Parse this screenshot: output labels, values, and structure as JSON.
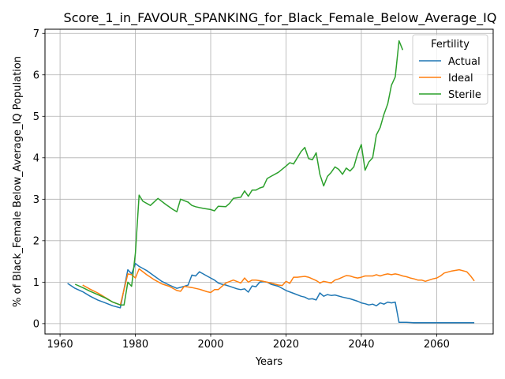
{
  "chart_data": {
    "type": "line",
    "title": "Score_1_in_FAVOUR_SPANKING_for_Black_Female_Below_Average_IQ",
    "xlabel": "Years",
    "ylabel": "% of Black_Female Below_Average_IQ Population",
    "xlim": [
      1956,
      2075
    ],
    "ylim": [
      -0.25,
      7.1
    ],
    "xticks": [
      1960,
      1980,
      2000,
      2020,
      2040,
      2060
    ],
    "yticks": [
      0,
      1,
      2,
      3,
      4,
      5,
      6,
      7
    ],
    "grid": true,
    "legend": {
      "title": "Fertility",
      "placement": "top-right"
    },
    "series": [
      {
        "name": "Actual",
        "color": "#1f77b4",
        "x": [
          1962,
          1964,
          1966,
          1968,
          1970,
          1972,
          1974,
          1976,
          1978,
          1979,
          1980,
          1981,
          1983,
          1985,
          1987,
          1989,
          1991,
          1993,
          1994,
          1995,
          1996,
          1997,
          1998,
          1999,
          2000,
          2001,
          2002,
          2003,
          2004,
          2005,
          2006,
          2007,
          2008,
          2009,
          2010,
          2011,
          2012,
          2013,
          2014,
          2015,
          2016,
          2018,
          2020,
          2022,
          2024,
          2025,
          2026,
          2027,
          2028,
          2029,
          2030,
          2031,
          2032,
          2033,
          2035,
          2037,
          2039,
          2040,
          2041,
          2042,
          2043,
          2044,
          2045,
          2046,
          2047,
          2048,
          2049,
          2050,
          2051,
          2052,
          2054,
          2056,
          2058,
          2060,
          2062,
          2064,
          2066,
          2068,
          2070
        ],
        "y": [
          0.97,
          0.85,
          0.77,
          0.66,
          0.57,
          0.5,
          0.43,
          0.38,
          1.3,
          1.2,
          1.45,
          1.38,
          1.28,
          1.15,
          1.02,
          0.93,
          0.85,
          0.9,
          0.93,
          1.17,
          1.15,
          1.25,
          1.2,
          1.15,
          1.1,
          1.05,
          0.98,
          0.95,
          0.93,
          0.9,
          0.87,
          0.84,
          0.82,
          0.84,
          0.76,
          0.91,
          0.89,
          1.0,
          1.01,
          1.0,
          0.95,
          0.9,
          0.8,
          0.73,
          0.66,
          0.64,
          0.59,
          0.6,
          0.57,
          0.74,
          0.66,
          0.7,
          0.68,
          0.69,
          0.64,
          0.6,
          0.54,
          0.5,
          0.48,
          0.45,
          0.47,
          0.43,
          0.5,
          0.47,
          0.52,
          0.5,
          0.52,
          0.03,
          0.03,
          0.03,
          0.02,
          0.02,
          0.02,
          0.02,
          0.02,
          0.02,
          0.02,
          0.02,
          0.02
        ]
      },
      {
        "name": "Ideal",
        "color": "#ff7f0e",
        "x": [
          1966,
          1968,
          1970,
          1972,
          1974,
          1976,
          1978,
          1979,
          1980,
          1981,
          1983,
          1985,
          1987,
          1989,
          1991,
          1992,
          1993,
          1995,
          1997,
          1999,
          2000,
          2001,
          2002,
          2004,
          2006,
          2008,
          2009,
          2010,
          2011,
          2012,
          2014,
          2016,
          2018,
          2019,
          2020,
          2021,
          2022,
          2023,
          2025,
          2026,
          2028,
          2029,
          2030,
          2031,
          2032,
          2033,
          2034,
          2035,
          2036,
          2037,
          2038,
          2039,
          2040,
          2041,
          2042,
          2043,
          2044,
          2045,
          2046,
          2047,
          2048,
          2049,
          2050,
          2051,
          2052,
          2053,
          2054,
          2055,
          2056,
          2057,
          2058,
          2059,
          2060,
          2061,
          2062,
          2064,
          2066,
          2068,
          2069,
          2070
        ],
        "y": [
          0.93,
          0.83,
          0.74,
          0.63,
          0.52,
          0.45,
          1.2,
          1.18,
          1.1,
          1.32,
          1.18,
          1.06,
          0.96,
          0.9,
          0.8,
          0.78,
          0.9,
          0.87,
          0.83,
          0.77,
          0.75,
          0.82,
          0.82,
          0.98,
          1.05,
          0.98,
          1.1,
          1.0,
          1.05,
          1.05,
          1.02,
          0.98,
          0.93,
          0.92,
          1.02,
          0.97,
          1.12,
          1.12,
          1.14,
          1.12,
          1.04,
          0.98,
          1.02,
          1.0,
          0.98,
          1.05,
          1.08,
          1.12,
          1.16,
          1.15,
          1.12,
          1.1,
          1.12,
          1.15,
          1.15,
          1.15,
          1.18,
          1.15,
          1.18,
          1.2,
          1.18,
          1.2,
          1.18,
          1.15,
          1.13,
          1.1,
          1.08,
          1.05,
          1.05,
          1.02,
          1.05,
          1.08,
          1.1,
          1.15,
          1.22,
          1.27,
          1.3,
          1.25,
          1.15,
          1.03
        ]
      },
      {
        "name": "Sterile",
        "color": "#2ca02c",
        "x": [
          1964,
          1966,
          1968,
          1970,
          1972,
          1974,
          1976,
          1977,
          1978,
          1979,
          1980,
          1981,
          1982,
          1984,
          1986,
          1988,
          1990,
          1991,
          1992,
          1994,
          1995,
          1996,
          1998,
          2000,
          2001,
          2002,
          2004,
          2005,
          2006,
          2008,
          2009,
          2010,
          2011,
          2012,
          2013,
          2014,
          2015,
          2016,
          2018,
          2020,
          2021,
          2022,
          2023,
          2024,
          2025,
          2026,
          2027,
          2028,
          2029,
          2030,
          2031,
          2032,
          2033,
          2034,
          2035,
          2036,
          2037,
          2038,
          2039,
          2040,
          2041,
          2042,
          2043,
          2044,
          2045,
          2046,
          2047,
          2048,
          2049,
          2050,
          2051
        ],
        "y": [
          0.95,
          0.87,
          0.78,
          0.7,
          0.62,
          0.52,
          0.45,
          0.45,
          1.0,
          0.9,
          1.7,
          3.1,
          2.95,
          2.85,
          3.02,
          2.88,
          2.75,
          2.7,
          3.0,
          2.93,
          2.85,
          2.82,
          2.78,
          2.75,
          2.72,
          2.83,
          2.82,
          2.9,
          3.02,
          3.05,
          3.2,
          3.07,
          3.22,
          3.22,
          3.27,
          3.3,
          3.5,
          3.55,
          3.65,
          3.8,
          3.88,
          3.85,
          4.0,
          4.15,
          4.25,
          3.98,
          3.95,
          4.12,
          3.6,
          3.32,
          3.55,
          3.65,
          3.78,
          3.72,
          3.6,
          3.75,
          3.68,
          3.78,
          4.1,
          4.32,
          3.7,
          3.9,
          4.0,
          4.55,
          4.73,
          5.05,
          5.3,
          5.75,
          5.95,
          6.82,
          6.6
        ]
      }
    ]
  }
}
